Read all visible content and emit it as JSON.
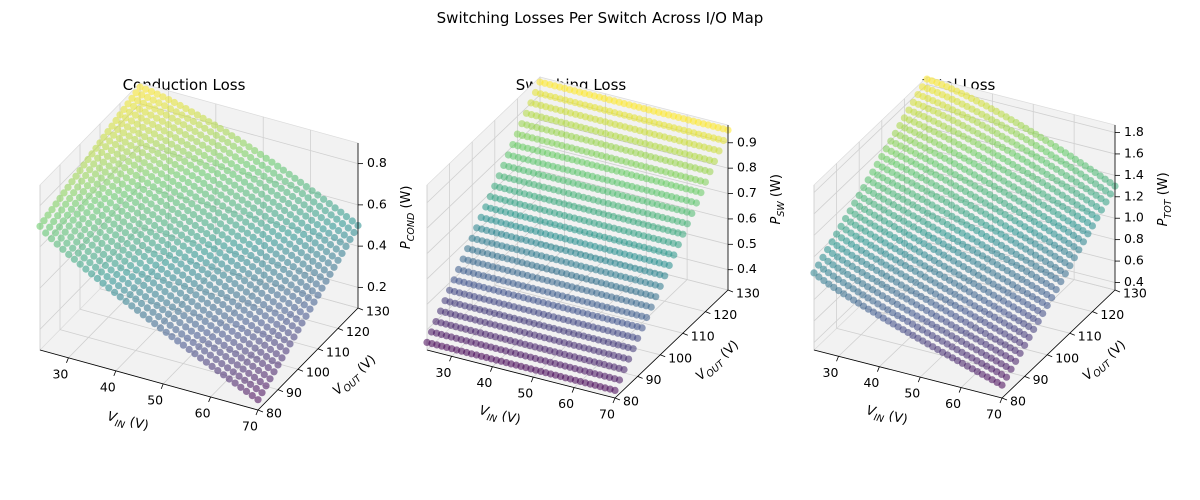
{
  "figure": {
    "title": "Switching Losses Per Switch Across I/O Map"
  },
  "colors": {
    "colormap": "viridis",
    "stops": [
      "#440154",
      "#3b528b",
      "#21918c",
      "#5ec962",
      "#fde725"
    ]
  },
  "chart_data": [
    {
      "type": "scatter3d",
      "title": "Conduction Loss",
      "x_label": "V_IN (V)",
      "x_main": "V",
      "x_sub": "IN",
      "x_unit": "(V)",
      "y_label": "V_OUT (V)",
      "y_main": "V",
      "y_sub": "OUT",
      "y_unit": "(V)",
      "z_label": "P_COND (W)",
      "z_main": "P",
      "z_sub": "COND",
      "z_unit": "(W)",
      "x_range": [
        24,
        70
      ],
      "y_range": [
        80,
        130
      ],
      "z_range": [
        0.1,
        0.9
      ],
      "x_ticks": [
        30,
        40,
        50,
        60,
        70
      ],
      "y_ticks": [
        80,
        90,
        100,
        110,
        120,
        130
      ],
      "z_ticks": [
        0.2,
        0.4,
        0.6,
        0.8
      ],
      "z_tick_labels": [
        "0.2",
        "0.4",
        "0.6",
        "0.8"
      ],
      "colormap": "viridis",
      "color_range": [
        0.15,
        0.88
      ],
      "surface_corners": {
        "vin_24_vout_80": 0.7,
        "vin_24_vout_130": 0.88,
        "vin_70_vout_80": 0.15,
        "vin_70_vout_130": 0.5
      },
      "grid": true
    },
    {
      "type": "scatter3d",
      "title": "Switching Loss",
      "x_label": "V_IN (V)",
      "x_main": "V",
      "x_sub": "IN",
      "x_unit": "(V)",
      "y_label": "V_OUT (V)",
      "y_main": "V",
      "y_sub": "OUT",
      "y_unit": "(V)",
      "z_label": "P_SW (W)",
      "z_main": "P",
      "z_sub": "SW",
      "z_unit": "(W)",
      "x_range": [
        24,
        70
      ],
      "y_range": [
        80,
        130
      ],
      "z_range": [
        0.32,
        0.97
      ],
      "x_ticks": [
        30,
        40,
        50,
        60,
        70
      ],
      "y_ticks": [
        80,
        90,
        100,
        110,
        120,
        130
      ],
      "z_ticks": [
        0.4,
        0.5,
        0.6,
        0.7,
        0.8,
        0.9
      ],
      "z_tick_labels": [
        "0.4",
        "0.5",
        "0.6",
        "0.7",
        "0.8",
        "0.9"
      ],
      "colormap": "viridis",
      "color_range": [
        0.35,
        0.95
      ],
      "surface_corners": {
        "vin_24_vout_80": 0.35,
        "vin_24_vout_130": 0.95,
        "vin_70_vout_80": 0.35,
        "vin_70_vout_130": 0.95
      },
      "grid": true
    },
    {
      "type": "scatter3d",
      "title": "Total Loss",
      "x_label": "V_IN (V)",
      "x_main": "V",
      "x_sub": "IN",
      "x_unit": "(V)",
      "y_label": "V_OUT (V)",
      "y_main": "V",
      "y_sub": "OUT",
      "y_unit": "(V)",
      "z_label": "P_TOT (W)",
      "z_main": "P",
      "z_sub": "TOT",
      "z_unit": "(W)",
      "x_range": [
        24,
        70
      ],
      "y_range": [
        80,
        130
      ],
      "z_range": [
        0.33,
        1.87
      ],
      "x_ticks": [
        30,
        40,
        50,
        60,
        70
      ],
      "y_ticks": [
        80,
        90,
        100,
        110,
        120,
        130
      ],
      "z_ticks": [
        0.4,
        0.6,
        0.8,
        1.0,
        1.2,
        1.4,
        1.6,
        1.8
      ],
      "z_tick_labels": [
        "0.4",
        "0.6",
        "0.8",
        "1.0",
        "1.2",
        "1.4",
        "1.6",
        "1.8"
      ],
      "colormap": "viridis",
      "color_range": [
        0.45,
        1.85
      ],
      "surface_corners": {
        "vin_24_vout_80": 1.05,
        "vin_24_vout_130": 1.85,
        "vin_70_vout_80": 0.45,
        "vin_70_vout_130": 1.3
      },
      "grid": true
    }
  ]
}
